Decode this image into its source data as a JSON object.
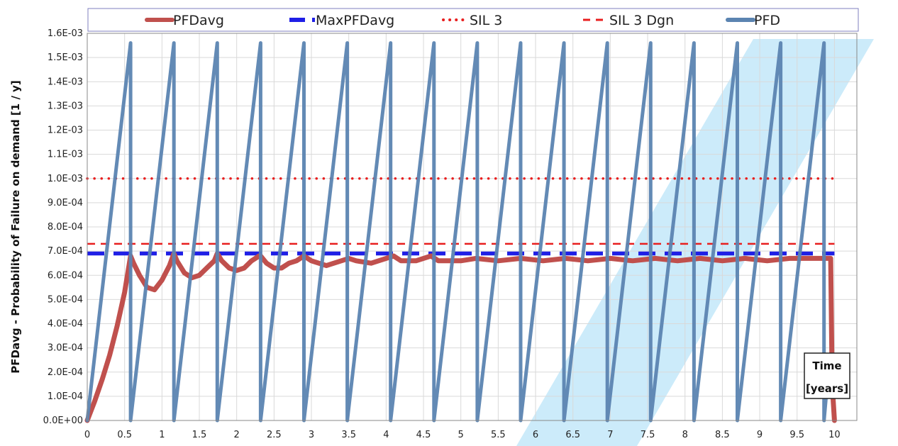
{
  "chart_data": {
    "type": "line",
    "title": "",
    "xlabel": "",
    "ylabel": "PFDavg - Probability of Failure on demand [1 / y]",
    "annotation": [
      "Time",
      "[years]"
    ],
    "xlim": [
      0,
      10.3
    ],
    "ylim": [
      0,
      0.0016
    ],
    "x_ticks": [
      "0",
      "0.5",
      "1",
      "1.5",
      "2",
      "2.5",
      "3",
      "3.5",
      "4",
      "4.5",
      "5",
      "5.5",
      "6",
      "6.5",
      "7",
      "7.5",
      "8",
      "8.5",
      "9",
      "9.5",
      "10"
    ],
    "y_ticks": [
      "0.0E+00",
      "1.0E-04",
      "2.0E-04",
      "3.0E-04",
      "4.0E-04",
      "5.0E-04",
      "6.0E-04",
      "7.0E-04",
      "8.0E-04",
      "9.0E-04",
      "1.0E-03",
      "1.1E-03",
      "1.2E-03",
      "1.3E-03",
      "1.4E-03",
      "1.5E-03",
      "1.6E-03"
    ],
    "grid": true,
    "legend_position": "top",
    "series": [
      {
        "name": "PFDavg",
        "color": "#c0504d",
        "style": "solid",
        "x": [
          0,
          0.1,
          0.2,
          0.3,
          0.4,
          0.5,
          0.58,
          0.62,
          0.7,
          0.8,
          0.9,
          1.0,
          1.1,
          1.16,
          1.2,
          1.3,
          1.4,
          1.5,
          1.6,
          1.7,
          1.74,
          1.8,
          1.9,
          2.0,
          2.1,
          2.2,
          2.3,
          2.32,
          2.4,
          2.5,
          2.6,
          2.7,
          2.8,
          2.9,
          3.0,
          3.2,
          3.3,
          3.4,
          3.5,
          3.6,
          3.8,
          3.9,
          4.0,
          4.1,
          4.2,
          4.4,
          4.5,
          4.6,
          4.7,
          5.0,
          5.2,
          5.5,
          5.8,
          6.1,
          6.4,
          6.7,
          7.0,
          7.3,
          7.6,
          7.9,
          8.2,
          8.5,
          8.8,
          9.1,
          9.4,
          9.7,
          9.95,
          9.97,
          10.0
        ],
        "y": [
          0,
          8e-05,
          0.00017,
          0.00027,
          0.00039,
          0.00053,
          0.00068,
          0.00065,
          0.0006,
          0.00055,
          0.00054,
          0.00058,
          0.00064,
          0.00069,
          0.00066,
          0.00061,
          0.00059,
          0.0006,
          0.00063,
          0.00066,
          0.00069,
          0.00066,
          0.00063,
          0.00062,
          0.00063,
          0.00066,
          0.00068,
          0.00068,
          0.00065,
          0.00063,
          0.00063,
          0.00065,
          0.00066,
          0.00068,
          0.00066,
          0.00064,
          0.00065,
          0.00066,
          0.00067,
          0.00066,
          0.00065,
          0.00066,
          0.00067,
          0.00068,
          0.00066,
          0.00066,
          0.00067,
          0.00068,
          0.00066,
          0.00066,
          0.00067,
          0.00066,
          0.00067,
          0.00066,
          0.00067,
          0.00066,
          0.00067,
          0.00066,
          0.00067,
          0.00066,
          0.00067,
          0.00066,
          0.00067,
          0.00066,
          0.00067,
          0.00067,
          0.00067,
          0.00015,
          0
        ]
      },
      {
        "name": "MaxPFDavg",
        "color": "#1f1fe6",
        "style": "dashed",
        "x": [
          0,
          10
        ],
        "y": [
          0.00069,
          0.00069
        ]
      },
      {
        "name": "SIL 3",
        "color": "#e81e1e",
        "style": "dotted",
        "x": [
          0,
          10
        ],
        "y": [
          0.001,
          0.001
        ]
      },
      {
        "name": "SIL 3 Dgn",
        "color": "#e81e1e",
        "style": "dashed",
        "x": [
          0,
          10
        ],
        "y": [
          0.00073,
          0.00073
        ]
      },
      {
        "name": "PFD",
        "color": "#5b84b1",
        "style": "solid",
        "x": [
          0,
          0.58,
          0.58,
          1.16,
          1.16,
          1.74,
          1.74,
          2.32,
          2.32,
          2.9,
          2.9,
          3.48,
          3.48,
          4.06,
          4.06,
          4.64,
          4.64,
          5.22,
          5.22,
          5.8,
          5.8,
          6.38,
          6.38,
          6.96,
          6.96,
          7.54,
          7.54,
          8.12,
          8.12,
          8.7,
          8.7,
          9.28,
          9.28,
          9.86,
          9.86,
          9.9,
          9.93
        ],
        "y": [
          0,
          0.00156,
          0,
          0.00156,
          0,
          0.00156,
          0,
          0.00156,
          0,
          0.00156,
          0,
          0.00156,
          0,
          0.00156,
          0,
          0.00156,
          0,
          0.00156,
          0,
          0.00156,
          0,
          0.00156,
          0,
          0.00156,
          0,
          0.00156,
          0,
          0.00156,
          0,
          0.00156,
          0,
          0.00156,
          0,
          0.00156,
          0,
          0.00014,
          0.00014
        ]
      }
    ]
  }
}
